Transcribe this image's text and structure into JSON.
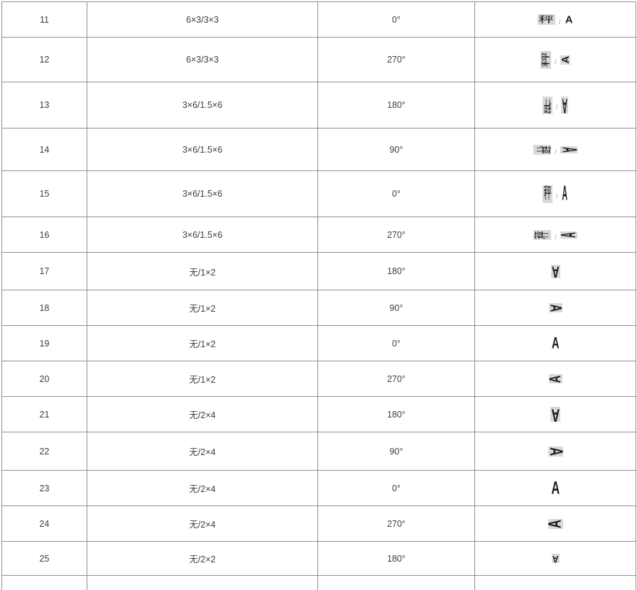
{
  "table": {
    "description_rows": [
      {
        "num": "11",
        "size_spec": "6×3/3×3",
        "angle": "0°",
        "hanzi": "秤",
        "separator": "/",
        "ascii": "A"
      },
      {
        "num": "12",
        "size_spec": "6×3/3×3",
        "angle": "270°",
        "hanzi": "秤",
        "separator": "/",
        "ascii": "A"
      },
      {
        "num": "13",
        "size_spec": "3×6/1.5×6",
        "angle": "180°",
        "hanzi": "秤",
        "separator": "/",
        "ascii": "A"
      },
      {
        "num": "14",
        "size_spec": "3×6/1.5×6",
        "angle": "90°",
        "hanzi": "秤",
        "separator": "/",
        "ascii": "A"
      },
      {
        "num": "15",
        "size_spec": "3×6/1.5×6",
        "angle": "0°",
        "hanzi": "秤",
        "separator": "/",
        "ascii": "A"
      },
      {
        "num": "16",
        "size_spec": "3×6/1.5×6",
        "angle": "270°",
        "hanzi": "秤",
        "separator": "/",
        "ascii": "A"
      },
      {
        "num": "17",
        "size_spec": "无/1×2",
        "angle": "180°",
        "hanzi": "",
        "separator": "",
        "ascii": "A"
      },
      {
        "num": "18",
        "size_spec": "无/1×2",
        "angle": "90°",
        "hanzi": "",
        "separator": "",
        "ascii": "A"
      },
      {
        "num": "19",
        "size_spec": "无/1×2",
        "angle": "0°",
        "hanzi": "",
        "separator": "",
        "ascii": "A"
      },
      {
        "num": "20",
        "size_spec": "无/1×2",
        "angle": "270°",
        "hanzi": "",
        "separator": "",
        "ascii": "A"
      },
      {
        "num": "21",
        "size_spec": "无/2×4",
        "angle": "180°",
        "hanzi": "",
        "separator": "",
        "ascii": "A"
      },
      {
        "num": "22",
        "size_spec": "无/2×4",
        "angle": "90°",
        "hanzi": "",
        "separator": "",
        "ascii": "A"
      },
      {
        "num": "23",
        "size_spec": "无/2×4",
        "angle": "0°",
        "hanzi": "",
        "separator": "",
        "ascii": "A"
      },
      {
        "num": "24",
        "size_spec": "无/2×4",
        "angle": "270°",
        "hanzi": "",
        "separator": "",
        "ascii": "A"
      },
      {
        "num": "25",
        "size_spec": "无/2×2",
        "angle": "180°",
        "hanzi": "",
        "separator": "",
        "ascii": "A"
      }
    ],
    "colors": {
      "border": "#8f8f8f",
      "text": "#3d3d3d",
      "glyph_highlight": "#d9d9d9",
      "separator_text": "#8fa0b0"
    }
  }
}
